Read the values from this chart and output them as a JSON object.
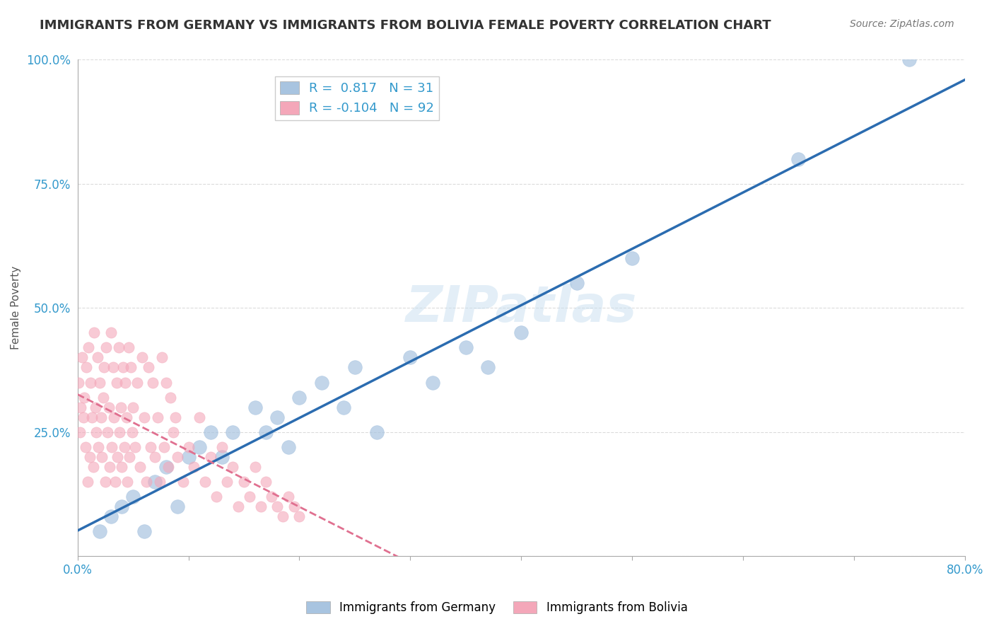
{
  "title": "IMMIGRANTS FROM GERMANY VS IMMIGRANTS FROM BOLIVIA FEMALE POVERTY CORRELATION CHART",
  "source": "Source: ZipAtlas.com",
  "ylabel": "Female Poverty",
  "xlabel": "",
  "xlim": [
    0.0,
    0.8
  ],
  "ylim": [
    0.0,
    1.0
  ],
  "xticks": [
    0.0,
    0.1,
    0.2,
    0.3,
    0.4,
    0.5,
    0.6,
    0.7,
    0.8
  ],
  "yticks": [
    0.0,
    0.25,
    0.5,
    0.75,
    1.0
  ],
  "ytick_labels": [
    "",
    "25.0%",
    "50.0%",
    "75.0%",
    "100.0%"
  ],
  "xtick_labels": [
    "0.0%",
    "",
    "",
    "",
    "",
    "",
    "",
    "",
    "80.0%"
  ],
  "watermark": "ZIPatlas",
  "germany_R": 0.817,
  "germany_N": 31,
  "bolivia_R": -0.104,
  "bolivia_N": 92,
  "germany_color": "#a8c4e0",
  "bolivia_color": "#f4a7b9",
  "germany_line_color": "#2b6cb0",
  "bolivia_line_color": "#e07090",
  "background_color": "#ffffff",
  "grid_color": "#cccccc",
  "title_fontsize": 13,
  "germany_x": [
    0.02,
    0.03,
    0.04,
    0.05,
    0.06,
    0.07,
    0.08,
    0.09,
    0.1,
    0.11,
    0.12,
    0.13,
    0.14,
    0.16,
    0.17,
    0.18,
    0.19,
    0.2,
    0.22,
    0.24,
    0.25,
    0.27,
    0.3,
    0.32,
    0.35,
    0.37,
    0.4,
    0.45,
    0.5,
    0.65,
    0.75
  ],
  "germany_y": [
    0.05,
    0.08,
    0.1,
    0.12,
    0.05,
    0.15,
    0.18,
    0.1,
    0.2,
    0.22,
    0.25,
    0.2,
    0.25,
    0.3,
    0.25,
    0.28,
    0.22,
    0.32,
    0.35,
    0.3,
    0.38,
    0.25,
    0.4,
    0.35,
    0.42,
    0.38,
    0.45,
    0.55,
    0.6,
    0.8,
    1.0
  ],
  "bolivia_x": [
    0.001,
    0.002,
    0.003,
    0.004,
    0.005,
    0.006,
    0.007,
    0.008,
    0.009,
    0.01,
    0.011,
    0.012,
    0.013,
    0.014,
    0.015,
    0.016,
    0.017,
    0.018,
    0.019,
    0.02,
    0.021,
    0.022,
    0.023,
    0.024,
    0.025,
    0.026,
    0.027,
    0.028,
    0.029,
    0.03,
    0.031,
    0.032,
    0.033,
    0.034,
    0.035,
    0.036,
    0.037,
    0.038,
    0.039,
    0.04,
    0.041,
    0.042,
    0.043,
    0.044,
    0.045,
    0.046,
    0.047,
    0.048,
    0.049,
    0.05,
    0.052,
    0.054,
    0.056,
    0.058,
    0.06,
    0.062,
    0.064,
    0.066,
    0.068,
    0.07,
    0.072,
    0.074,
    0.076,
    0.078,
    0.08,
    0.082,
    0.084,
    0.086,
    0.088,
    0.09,
    0.095,
    0.1,
    0.105,
    0.11,
    0.115,
    0.12,
    0.125,
    0.13,
    0.135,
    0.14,
    0.145,
    0.15,
    0.155,
    0.16,
    0.165,
    0.17,
    0.175,
    0.18,
    0.185,
    0.19,
    0.195,
    0.2
  ],
  "bolivia_y": [
    0.35,
    0.25,
    0.3,
    0.4,
    0.28,
    0.32,
    0.22,
    0.38,
    0.15,
    0.42,
    0.2,
    0.35,
    0.28,
    0.18,
    0.45,
    0.3,
    0.25,
    0.4,
    0.22,
    0.35,
    0.28,
    0.2,
    0.32,
    0.38,
    0.15,
    0.42,
    0.25,
    0.3,
    0.18,
    0.45,
    0.22,
    0.38,
    0.28,
    0.15,
    0.35,
    0.2,
    0.42,
    0.25,
    0.3,
    0.18,
    0.38,
    0.22,
    0.35,
    0.28,
    0.15,
    0.42,
    0.2,
    0.38,
    0.25,
    0.3,
    0.22,
    0.35,
    0.18,
    0.4,
    0.28,
    0.15,
    0.38,
    0.22,
    0.35,
    0.2,
    0.28,
    0.15,
    0.4,
    0.22,
    0.35,
    0.18,
    0.32,
    0.25,
    0.28,
    0.2,
    0.15,
    0.22,
    0.18,
    0.28,
    0.15,
    0.2,
    0.12,
    0.22,
    0.15,
    0.18,
    0.1,
    0.15,
    0.12,
    0.18,
    0.1,
    0.15,
    0.12,
    0.1,
    0.08,
    0.12,
    0.1,
    0.08
  ]
}
